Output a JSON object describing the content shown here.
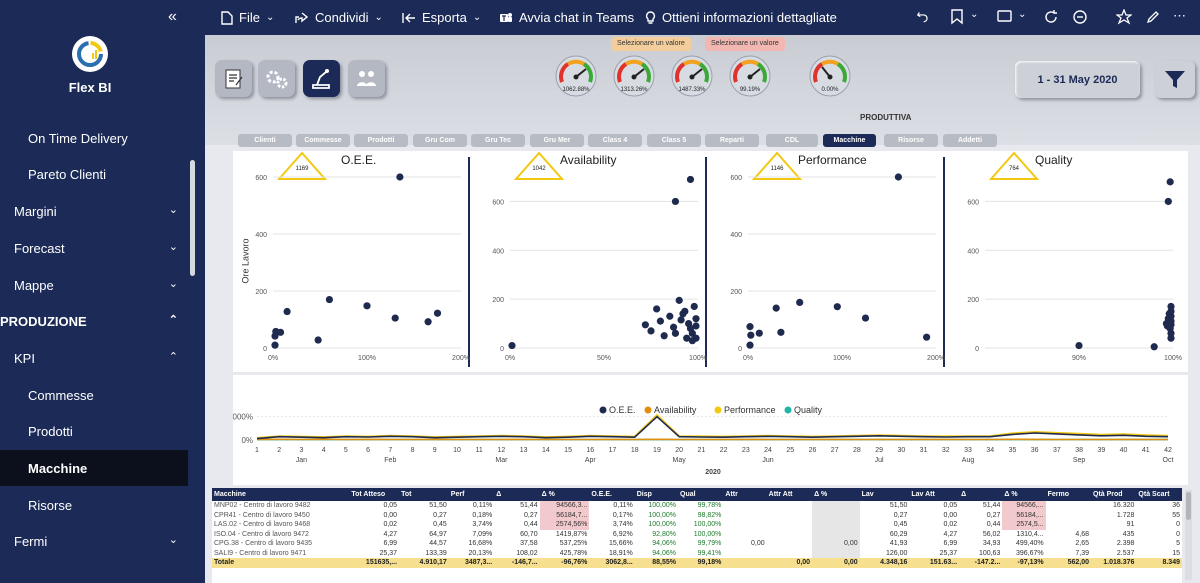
{
  "sidebar": {
    "app_name": "Flex BI",
    "collapse_glyph": "«",
    "items": [
      {
        "label": "On Time Delivery",
        "level": "l3",
        "chevron": ""
      },
      {
        "label": "Pareto Clienti",
        "level": "l3",
        "chevron": ""
      },
      {
        "label": "Margini",
        "level": "l1",
        "chevron": "⌄"
      },
      {
        "label": "Forecast",
        "level": "l1",
        "chevron": "⌄"
      },
      {
        "label": "Mappe",
        "level": "l1",
        "chevron": "⌄"
      },
      {
        "label": "PRODUZIONE",
        "level": "sec",
        "chevron": "⌃"
      },
      {
        "label": "KPI",
        "level": "l2",
        "chevron": "⌃"
      },
      {
        "label": "Commesse",
        "level": "l3",
        "chevron": ""
      },
      {
        "label": "Prodotti",
        "level": "l3",
        "chevron": ""
      },
      {
        "label": "Macchine",
        "level": "l3",
        "chevron": "",
        "active": true
      },
      {
        "label": "Risorse",
        "level": "l3",
        "chevron": ""
      },
      {
        "label": "Fermi",
        "level": "l1",
        "chevron": "⌄"
      }
    ]
  },
  "topbar": {
    "file": "File",
    "share": "Condividi",
    "export": "Esporta",
    "teams": "Avvia chat in Teams",
    "insights": "Ottieni informazioni dettagliate"
  },
  "report": {
    "pill1": "Selezionare un valore",
    "pill2": "Selezionare un valore",
    "gauges": [
      "1062.88%",
      "1313.26%",
      "1487.33%",
      "99.19%",
      "0.00%"
    ],
    "date_range": "1 - 31 May 2020",
    "section_label": "PRODUTTIVA",
    "tabs": [
      "Clienti",
      "Commesse",
      "Prodotti",
      "Gru Com",
      "Gru Tec",
      "Gru Mer",
      "Class 4",
      "Class 5",
      "Reparti",
      "CDL",
      "Macchine",
      "Risorse",
      "Addetti"
    ],
    "selected_tab": 10,
    "colors": {
      "navy": "#1b2a56",
      "dot": "#1f2a4f",
      "oee": "#1f2a4f",
      "availability": "#e08e0b",
      "performance": "#f2c811",
      "quality": "#1fb5a8"
    }
  },
  "chart_data": [
    {
      "type": "scatter",
      "title": "O.E.E.",
      "badge": "1169",
      "ylabel": "Ore Lavoro",
      "xlim": [
        0,
        200
      ],
      "ylim": [
        0,
        600
      ],
      "x_ticks": [
        "0%",
        "100%",
        "200%"
      ],
      "y_ticks": [
        "0",
        "200",
        "400",
        "600"
      ],
      "points": [
        [
          1,
          42
        ],
        [
          3,
          58
        ],
        [
          8,
          55
        ],
        [
          15,
          128
        ],
        [
          48,
          28
        ],
        [
          60,
          170
        ],
        [
          100,
          148
        ],
        [
          135,
          600
        ],
        [
          130,
          105
        ],
        [
          165,
          92
        ],
        [
          175,
          122
        ],
        [
          0,
          10
        ]
      ]
    },
    {
      "type": "scatter",
      "title": "Availability",
      "badge": "1042",
      "xlim": [
        0,
        100
      ],
      "ylim": [
        0,
        700
      ],
      "x_ticks": [
        "0%",
        "50%",
        "100%"
      ],
      "y_ticks": [
        "0",
        "200",
        "400",
        "600"
      ],
      "points": [
        [
          1,
          10
        ],
        [
          72,
          95
        ],
        [
          75,
          70
        ],
        [
          78,
          160
        ],
        [
          80,
          110
        ],
        [
          82,
          50
        ],
        [
          85,
          130
        ],
        [
          87,
          85
        ],
        [
          88,
          60
        ],
        [
          90,
          195
        ],
        [
          91,
          115
        ],
        [
          93,
          150
        ],
        [
          94,
          40
        ],
        [
          95,
          100
        ],
        [
          96,
          80
        ],
        [
          97,
          60
        ],
        [
          98,
          170
        ],
        [
          99,
          120
        ],
        [
          97,
          30
        ],
        [
          99,
          40
        ],
        [
          100,
          90
        ],
        [
          88,
          600
        ],
        [
          96,
          690
        ],
        [
          92,
          140
        ]
      ]
    },
    {
      "type": "scatter",
      "title": "Performance",
      "badge": "1146",
      "xlim": [
        0,
        200
      ],
      "ylim": [
        0,
        600
      ],
      "x_ticks": [
        "0%",
        "100%",
        "200%"
      ],
      "y_ticks": [
        "0",
        "200",
        "400",
        "600"
      ],
      "points": [
        [
          1,
          75
        ],
        [
          3,
          45
        ],
        [
          12,
          52
        ],
        [
          30,
          140
        ],
        [
          35,
          55
        ],
        [
          55,
          160
        ],
        [
          95,
          145
        ],
        [
          125,
          105
        ],
        [
          160,
          600
        ],
        [
          190,
          38
        ],
        [
          0,
          10
        ]
      ]
    },
    {
      "type": "scatter",
      "title": "Quality",
      "badge": "764",
      "xlim": [
        80,
        100
      ],
      "ylim": [
        0,
        700
      ],
      "x_ticks": [
        "90%",
        "100%"
      ],
      "y_ticks": [
        "0",
        "200",
        "400",
        "600"
      ],
      "points": [
        [
          90,
          10
        ],
        [
          98,
          5
        ],
        [
          99.3,
          100
        ],
        [
          99.5,
          120
        ],
        [
          99.7,
          80
        ],
        [
          99.8,
          150
        ],
        [
          99.9,
          60
        ],
        [
          100,
          170
        ],
        [
          99.6,
          140
        ],
        [
          99.4,
          90
        ],
        [
          99.8,
          110
        ],
        [
          99.9,
          130
        ],
        [
          100,
          95
        ],
        [
          99.7,
          680
        ],
        [
          99.5,
          600
        ],
        [
          99.9,
          40
        ]
      ]
    },
    {
      "type": "line",
      "legend": [
        "O.E.E.",
        "Availability",
        "Performance",
        "Quality"
      ],
      "y_ticks": [
        "0%",
        "5000%"
      ],
      "ylim": [
        0,
        6000
      ],
      "x_weeks": [
        1,
        2,
        3,
        4,
        5,
        6,
        7,
        8,
        9,
        10,
        11,
        12,
        13,
        14,
        15,
        16,
        17,
        18,
        19,
        20,
        21,
        22,
        23,
        24,
        25,
        26,
        27,
        28,
        29,
        30,
        31,
        32,
        33,
        34,
        35,
        36,
        37,
        38,
        39,
        40,
        41,
        42
      ],
      "months": [
        "Jan",
        "Feb",
        "Mar",
        "Apr",
        "May",
        "Jun",
        "Jul",
        "Aug",
        "Sep",
        "Oct"
      ],
      "month_weeks": [
        3,
        7,
        12,
        16,
        20,
        24,
        29,
        33,
        38,
        42
      ],
      "year": "2020",
      "series": [
        {
          "name": "O.E.E.",
          "values": [
            300,
            700,
            600,
            500,
            700,
            650,
            800,
            700,
            500,
            600,
            700,
            800,
            700,
            500,
            600,
            800,
            700,
            600,
            5000,
            700,
            650,
            600,
            700,
            800,
            700,
            600,
            700,
            800,
            900,
            800,
            700,
            650,
            700,
            700,
            1200,
            1500,
            1300,
            1100,
            900,
            1000,
            800,
            700
          ]
        },
        {
          "name": "Availability",
          "values": [
            100,
            150,
            100,
            150,
            100,
            120,
            110,
            100,
            120,
            100,
            110,
            100,
            120,
            100,
            110,
            100,
            120,
            100,
            150,
            100,
            110,
            100,
            120,
            100,
            110,
            100,
            120,
            100,
            110,
            100,
            120,
            100,
            110,
            100,
            150,
            120,
            100,
            110,
            100,
            120,
            100,
            100
          ]
        },
        {
          "name": "Performance",
          "values": [
            400,
            800,
            700,
            600,
            800,
            700,
            900,
            800,
            600,
            700,
            800,
            900,
            800,
            600,
            700,
            900,
            800,
            700,
            5300,
            800,
            750,
            700,
            800,
            900,
            800,
            700,
            800,
            900,
            1000,
            900,
            800,
            750,
            800,
            800,
            1400,
            1700,
            1500,
            1300,
            1100,
            1200,
            1000,
            900
          ]
        },
        {
          "name": "Quality",
          "values": [
            90,
            90,
            90,
            90,
            90,
            90,
            90,
            90,
            90,
            90,
            90,
            90,
            90,
            90,
            90,
            90,
            90,
            90,
            90,
            90,
            90,
            90,
            90,
            90,
            90,
            90,
            90,
            90,
            90,
            90,
            90,
            90,
            90,
            90,
            90,
            90,
            90,
            90,
            90,
            90,
            90,
            90
          ]
        }
      ]
    },
    {
      "type": "table",
      "columns": [
        "Macchine",
        "Tot Atteso",
        "Tot",
        "Perf",
        "Δ",
        "Δ %",
        "O.E.E.",
        "Disp",
        "Qual",
        "Attr",
        "Attr Att",
        "Δ %",
        "Lav",
        "Lav Att",
        "Δ",
        "Δ %",
        "Fermo",
        "Qtà Prod",
        "Qtà Scart"
      ],
      "rows": [
        [
          "MNP02 - Centro di lavoro 9482",
          "0,05",
          "51,50",
          "0,11%",
          "51,44",
          "94566,3...",
          "0,11%",
          "100,00%",
          "99,78%",
          "",
          "",
          "",
          "51,50",
          "0,05",
          "51,44",
          "94566,...",
          "",
          "16.320",
          "36"
        ],
        [
          "CPR41 - Centro di lavoro 9450",
          "0,00",
          "0,27",
          "0,18%",
          "0,27",
          "56184,7...",
          "0,17%",
          "100,00%",
          "98,82%",
          "",
          "",
          "",
          "0,27",
          "0,00",
          "0,27",
          "56184,...",
          "",
          "1.728",
          "55"
        ],
        [
          "LAS.02 - Centro di lavoro 9468",
          "0,02",
          "0,45",
          "3,74%",
          "0,44",
          "2574,56%",
          "3,74%",
          "100,00%",
          "100,00%",
          "",
          "",
          "",
          "0,45",
          "0,02",
          "0,44",
          "2574,5...",
          "",
          "91",
          "0"
        ],
        [
          "ISO.04 - Centro di lavoro 9472",
          "4,27",
          "64,97",
          "7,09%",
          "60,70",
          "1419,87%",
          "6,92%",
          "92,80%",
          "100,00%",
          "",
          "",
          "",
          "60,29",
          "4,27",
          "56,02",
          "1310,4...",
          "4,68",
          "435",
          "0"
        ],
        [
          "CPG.38 - Centro di lavoro 9435",
          "6,99",
          "44,57",
          "16,68%",
          "37,58",
          "537,25%",
          "15,66%",
          "94,06%",
          "99,79%",
          "0,00",
          "",
          "0,00",
          "41,93",
          "6,99",
          "34,93",
          "499,40%",
          "2,65",
          "2.398",
          "5"
        ],
        [
          "SALI9 - Centro di lavoro 9471",
          "25,37",
          "133,39",
          "20,13%",
          "108,02",
          "425,78%",
          "18,91%",
          "94,06%",
          "99,41%",
          "",
          "",
          "",
          "126,00",
          "25,37",
          "100,63",
          "396,67%",
          "7,39",
          "2.537",
          "15"
        ]
      ],
      "total": [
        "Totale",
        "151635,...",
        "4.910,17",
        "3487,3...",
        "-146,7...",
        "-96,76%",
        "3062,8...",
        "88,55%",
        "99,18%",
        "",
        "0,00",
        "0,00",
        "4.348,16",
        "151.63...",
        "-147.2...",
        "-97,13%",
        "562,00",
        "1.018.376",
        "8.349"
      ]
    }
  ]
}
